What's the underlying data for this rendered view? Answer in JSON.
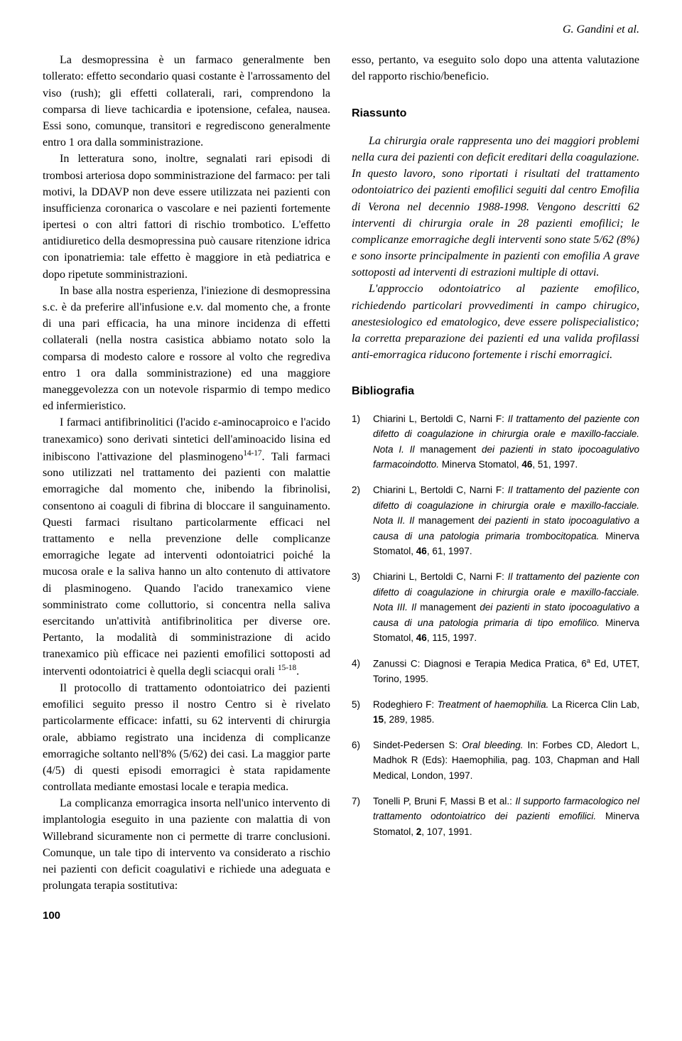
{
  "header": {
    "author": "G. Gandini et al."
  },
  "leftColumn": {
    "paragraphs": [
      "La desmopressina è un farmaco generalmente ben tollerato: effetto secondario quasi costante è l'arrossamento del viso (rush); gli effetti collaterali, rari, comprendono la comparsa di lieve tachicardia e ipotensione, cefalea, nausea. Essi sono, comunque, transitori e regrediscono generalmente entro 1 ora dalla somministrazione.",
      "In letteratura sono, inoltre, segnalati rari episodi di trombosi arteriosa dopo somministrazione del farmaco: per tali motivi, la DDAVP non deve essere utilizzata nei pazienti con insufficienza coronarica o vascolare e nei pazienti fortemente ipertesi o con altri fattori di rischio trombotico. L'effetto antidiuretico della desmopressina può causare ritenzione idrica con iponatriemia: tale effetto è maggiore in età pediatrica e dopo ripetute somministrazioni.",
      "In base alla nostra esperienza, l'iniezione di desmopressina s.c. è da preferire all'infusione e.v. dal momento che, a fronte di una pari efficacia, ha una minore incidenza di effetti collaterali (nella nostra casistica abbiamo notato solo la comparsa di modesto calore e rossore al volto che regrediva entro 1 ora dalla somministrazione) ed una maggiore maneggevolezza con un notevole risparmio di tempo medico ed infermieristico.",
      "I farmaci antifibrinolitici (l'acido ε-aminocaproico e l'acido tranexamico) sono derivati sintetici dell'aminoacido lisina ed inibiscono l'attivazione del plasminogeno14-17. Tali farmaci sono utilizzati nel trattamento dei pazienti con malattie emorragiche dal momento che, inibendo la fibrinolisi, consentono ai coaguli di fibrina di bloccare il sanguinamento. Questi farmaci risultano particolarmente efficaci nel trattamento e nella prevenzione delle complicanze emorragiche legate ad interventi odontoiatrici poiché la mucosa orale e la saliva hanno un alto contenuto di attivatore di plasminogeno. Quando l'acido tranexamico viene somministrato come colluttorio, si concentra nella saliva esercitando un'attività antifibrinolitica per diverse ore. Pertanto, la modalità di somministrazione di acido tranexamico più efficace nei pazienti emofilici sottoposti ad interventi odontoiatrici è quella degli sciacqui orali 15-18.",
      "Il protocollo di trattamento odontoiatrico dei pazienti emofilici seguito presso il nostro Centro si è rivelato particolarmente efficace: infatti, su 62 interventi di chirurgia orale, abbiamo registrato una incidenza di complicanze emorragiche soltanto nell'8% (5/62) dei casi. La maggior parte (4/5) di questi episodi emorragici è stata rapidamente controllata mediante emostasi locale e terapia medica.",
      "La complicanza emorragica insorta nell'unico intervento di implantologia eseguito in una paziente con malattia di von Willebrand sicuramente non ci permette di trarre conclusioni. Comunque, un tale tipo di intervento va considerato a rischio nei pazienti con deficit coagulativi e richiede una adeguata e prolungata terapia sostitutiva:"
    ]
  },
  "rightColumn": {
    "continuation": "esso, pertanto, va eseguito solo dopo una attenta valutazione del rapporto rischio/beneficio.",
    "riassuntoHeading": "Riassunto",
    "riassuntoParagraphs": [
      "La chirurgia orale rappresenta uno dei maggiori problemi nella cura dei pazienti con deficit ereditari della coagulazione. In questo lavoro, sono riportati i risultati del trattamento odontoiatrico dei pazienti emofilici seguiti dal centro Emofilia di Verona nel decennio 1988-1998. Vengono descritti 62 interventi di chirurgia orale in 28 pazienti emofilici; le complicanze emorragiche degli interventi sono state 5/62 (8%) e sono insorte principalmente in pazienti con emofilia A grave sottoposti ad interventi di estrazioni multiple di ottavi.",
      "L'approccio odontoiatrico al paziente emofilico, richiedendo particolari provvedimenti in campo chirugico, anestesiologico ed ematologico, deve essere polispecialistico; la corretta preparazione dei pazienti ed una valida profilassi anti-emorragica riducono fortemente i rischi emorragici."
    ],
    "bibliographyHeading": "Bibliografia",
    "bibliography": [
      {
        "num": "1)",
        "authors": "Chiarini L, Bertoldi C, Narni F: ",
        "title": "Il trattamento del paziente con difetto di coagulazione in chirurgia orale e maxillo-facciale. Nota I. Il ",
        "plain1": "management ",
        "title2": "dei pazienti in stato ipocoagulativo farmacoindotto. ",
        "plain2": "Minerva Stomatol, ",
        "vol": "46",
        "rest": ", 51, 1997."
      },
      {
        "num": "2)",
        "authors": "Chiarini L, Bertoldi C, Narni F: ",
        "title": "Il trattamento del paziente con difetto di coagulazione in chirurgia orale e maxillo-facciale. Nota II. Il ",
        "plain1": "management ",
        "title2": "dei pazienti in stato ipocoagulativo a causa di una patologia primaria trombocitopatica. ",
        "plain2": "Minerva Stomatol, ",
        "vol": "46",
        "rest": ", 61, 1997."
      },
      {
        "num": "3)",
        "authors": "Chiarini L, Bertoldi C, Narni F: ",
        "title": "Il trattamento del paziente con difetto di coagulazione in chirurgia orale e maxillo-facciale. Nota III. Il ",
        "plain1": "management ",
        "title2": "dei pazienti in stato ipocoagulativo a causa di una patologia primaria di tipo emofilico. ",
        "plain2": "Minerva Stomatol, ",
        "vol": "46",
        "rest": ", 115, 1997."
      },
      {
        "num": "4)",
        "authors": "Zanussi C: Diagnosi e Terapia Medica Pratica, 6",
        "supa": "a",
        "rest": " Ed, UTET, Torino, 1995."
      },
      {
        "num": "5)",
        "authors": "Rodeghiero F: ",
        "title": "Treatment of haemophilia. ",
        "plain2": "La Ricerca Clin Lab, ",
        "vol": "15",
        "rest": ", 289, 1985."
      },
      {
        "num": "6)",
        "authors": "Sindet-Pedersen S: ",
        "title": "Oral bleeding. ",
        "plain2": "In: Forbes CD, Aledort L, Madhok R (Eds): Haemophilia, pag. 103, Chapman and Hall Medical, London, 1997."
      },
      {
        "num": "7)",
        "authors": "Tonelli P, Bruni F, Massi B et al.: ",
        "title": "Il supporto farmacologico nel trattamento odontoiatrico dei pazienti emofilici. ",
        "plain2": "Minerva Stomatol, ",
        "vol": "2",
        "rest": ", 107, 1991."
      }
    ]
  },
  "pageNumber": "100"
}
